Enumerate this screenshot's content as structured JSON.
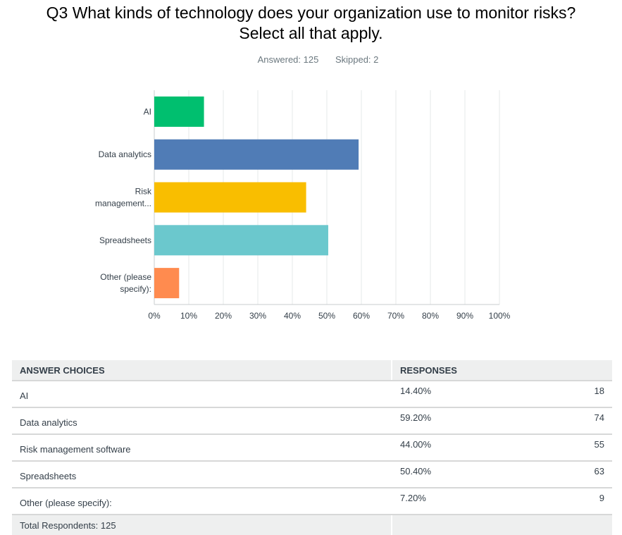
{
  "question": {
    "line1": "Q3 What kinds of technology does your organization use to monitor risks?",
    "line2": "Select all that apply."
  },
  "stats": {
    "answered": "Answered: 125",
    "skipped": "Skipped: 2"
  },
  "chart_data": {
    "type": "bar",
    "orientation": "horizontal",
    "categories": [
      [
        "AI"
      ],
      [
        "Data analytics"
      ],
      [
        "Risk",
        "management..."
      ],
      [
        "Spreadsheets"
      ],
      [
        "Other (please",
        "specify):"
      ]
    ],
    "values": [
      14.4,
      59.2,
      44.0,
      50.4,
      7.2
    ],
    "colors": [
      "#00bf6f",
      "#507cb6",
      "#f9be00",
      "#6bc8cd",
      "#ff8b4f"
    ],
    "xlim": [
      0,
      100
    ],
    "x_ticks": [
      "0%",
      "10%",
      "20%",
      "30%",
      "40%",
      "50%",
      "60%",
      "70%",
      "80%",
      "90%",
      "100%"
    ],
    "grid": true,
    "legend": "none"
  },
  "table": {
    "headers": {
      "choice": "ANSWER CHOICES",
      "responses": "RESPONSES"
    },
    "rows": [
      {
        "choice": "AI",
        "percent": "14.40%",
        "count": "18"
      },
      {
        "choice": "Data analytics",
        "percent": "59.20%",
        "count": "74"
      },
      {
        "choice": "Risk management software",
        "percent": "44.00%",
        "count": "55"
      },
      {
        "choice": "Spreadsheets",
        "percent": "50.40%",
        "count": "63"
      },
      {
        "choice": "Other (please specify):",
        "percent": "7.20%",
        "count": "9"
      }
    ],
    "footer": "Total Respondents: 125"
  }
}
